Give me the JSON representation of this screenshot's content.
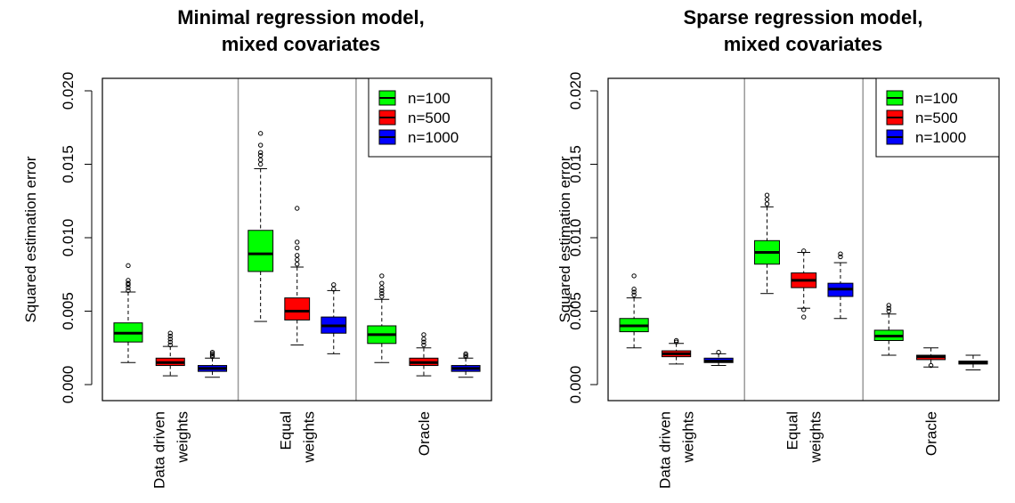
{
  "chart_data": [
    {
      "type": "box",
      "title_lines": [
        "Minimal regression model,",
        "mixed covariates"
      ],
      "ylabel": "Squared estimation error",
      "ylim": [
        0.0,
        0.02
      ],
      "yticks": [
        "0.000",
        "0.005",
        "0.010",
        "0.015",
        "0.020"
      ],
      "yticks_values": [
        0.0,
        0.005,
        0.01,
        0.015,
        0.02
      ],
      "groups": [
        {
          "label_lines": [
            "Data driven",
            "weights"
          ]
        },
        {
          "label_lines": [
            "Equal",
            "weights"
          ]
        },
        {
          "label_lines": [
            "Oracle"
          ]
        }
      ],
      "legend": {
        "position": "top-right",
        "entries": [
          "n=100",
          "n=500",
          "n=1000"
        ]
      },
      "series_colors": [
        "#00ff00",
        "#ff0000",
        "#0000ff"
      ],
      "boxes": [
        {
          "group": 0,
          "series": 0,
          "low": 0.0015,
          "q1": 0.0029,
          "median": 0.0035,
          "q3": 0.0042,
          "high": 0.0063,
          "outliers": [
            0.0064,
            0.0066,
            0.0068,
            0.0069,
            0.0071,
            0.0081
          ]
        },
        {
          "group": 0,
          "series": 1,
          "low": 0.0006,
          "q1": 0.0013,
          "median": 0.0015,
          "q3": 0.0018,
          "high": 0.0026,
          "outliers": [
            0.0027,
            0.0029,
            0.0031,
            0.0033,
            0.0035
          ]
        },
        {
          "group": 0,
          "series": 2,
          "low": 0.0005,
          "q1": 0.0009,
          "median": 0.0011,
          "q3": 0.0013,
          "high": 0.0018,
          "outliers": [
            0.0019,
            0.002,
            0.0021,
            0.0022
          ]
        },
        {
          "group": 1,
          "series": 0,
          "low": 0.0043,
          "q1": 0.0077,
          "median": 0.0089,
          "q3": 0.0105,
          "high": 0.0147,
          "outliers": [
            0.015,
            0.0153,
            0.0156,
            0.0158,
            0.0163,
            0.0171
          ]
        },
        {
          "group": 1,
          "series": 1,
          "low": 0.0027,
          "q1": 0.0044,
          "median": 0.005,
          "q3": 0.0059,
          "high": 0.008,
          "outliers": [
            0.0082,
            0.0085,
            0.0088,
            0.0093,
            0.0097,
            0.012
          ]
        },
        {
          "group": 1,
          "series": 2,
          "low": 0.0021,
          "q1": 0.0035,
          "median": 0.004,
          "q3": 0.0046,
          "high": 0.0064,
          "outliers": [
            0.0065,
            0.0068
          ]
        },
        {
          "group": 2,
          "series": 0,
          "low": 0.0015,
          "q1": 0.0028,
          "median": 0.0034,
          "q3": 0.004,
          "high": 0.0058,
          "outliers": [
            0.006,
            0.0062,
            0.0064,
            0.0066,
            0.0069,
            0.0074
          ]
        },
        {
          "group": 2,
          "series": 1,
          "low": 0.0006,
          "q1": 0.0013,
          "median": 0.0015,
          "q3": 0.0018,
          "high": 0.0025,
          "outliers": [
            0.0027,
            0.0029,
            0.0031,
            0.0034
          ]
        },
        {
          "group": 2,
          "series": 2,
          "low": 0.0005,
          "q1": 0.0009,
          "median": 0.0011,
          "q3": 0.0013,
          "high": 0.0018,
          "outliers": [
            0.0019,
            0.002,
            0.0021
          ]
        }
      ]
    },
    {
      "type": "box",
      "title_lines": [
        "Sparse regression model,",
        "mixed covariates"
      ],
      "ylabel": "Squared estimation error",
      "ylim": [
        0.0,
        0.02
      ],
      "yticks": [
        "0.000",
        "0.005",
        "0.010",
        "0.015",
        "0.020"
      ],
      "yticks_values": [
        0.0,
        0.005,
        0.01,
        0.015,
        0.02
      ],
      "groups": [
        {
          "label_lines": [
            "Data driven",
            "weights"
          ]
        },
        {
          "label_lines": [
            "Equal",
            "weights"
          ]
        },
        {
          "label_lines": [
            "Oracle"
          ]
        }
      ],
      "legend": {
        "position": "top-right",
        "entries": [
          "n=100",
          "n=500",
          "n=1000"
        ]
      },
      "series_colors": [
        "#00ff00",
        "#ff0000",
        "#0000ff"
      ],
      "boxes": [
        {
          "group": 0,
          "series": 0,
          "low": 0.0025,
          "q1": 0.0036,
          "median": 0.004,
          "q3": 0.0045,
          "high": 0.0059,
          "outliers": [
            0.0061,
            0.0063,
            0.0065,
            0.0074
          ]
        },
        {
          "group": 0,
          "series": 1,
          "low": 0.0014,
          "q1": 0.0019,
          "median": 0.0021,
          "q3": 0.0023,
          "high": 0.0028,
          "outliers": [
            0.0029,
            0.003
          ]
        },
        {
          "group": 0,
          "series": 2,
          "low": 0.0013,
          "q1": 0.0015,
          "median": 0.0016,
          "q3": 0.0018,
          "high": 0.0021,
          "outliers": [
            0.0022
          ]
        },
        {
          "group": 1,
          "series": 0,
          "low": 0.0062,
          "q1": 0.0082,
          "median": 0.009,
          "q3": 0.0098,
          "high": 0.0121,
          "outliers": [
            0.0123,
            0.0126,
            0.0129
          ]
        },
        {
          "group": 1,
          "series": 1,
          "low": 0.0052,
          "q1": 0.0066,
          "median": 0.0071,
          "q3": 0.0076,
          "high": 0.009,
          "outliers": [
            0.0046,
            0.0051,
            0.0091
          ]
        },
        {
          "group": 1,
          "series": 2,
          "low": 0.0045,
          "q1": 0.006,
          "median": 0.0065,
          "q3": 0.0069,
          "high": 0.0083,
          "outliers": [
            0.0087,
            0.0089
          ]
        },
        {
          "group": 2,
          "series": 0,
          "low": 0.002,
          "q1": 0.003,
          "median": 0.0033,
          "q3": 0.0037,
          "high": 0.0048,
          "outliers": [
            0.005,
            0.0052,
            0.0054
          ]
        },
        {
          "group": 2,
          "series": 1,
          "low": 0.0012,
          "q1": 0.0017,
          "median": 0.0019,
          "q3": 0.002,
          "high": 0.0025,
          "outliers": [
            0.0013
          ]
        },
        {
          "group": 2,
          "series": 2,
          "low": 0.001,
          "q1": 0.0014,
          "median": 0.0015,
          "q3": 0.0016,
          "high": 0.002,
          "outliers": []
        }
      ]
    }
  ]
}
